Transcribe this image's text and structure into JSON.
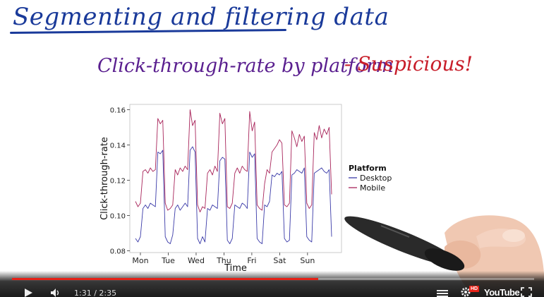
{
  "slide": {
    "title": "Segmenting and filtering data",
    "subtitle": "Click-through-rate by platform",
    "note": "- Suspicious!"
  },
  "player": {
    "time": "1:31 / 2:35",
    "progress": 0.587,
    "logo": "YouTube",
    "hd_badge": "HD",
    "icons": [
      "play-icon",
      "volume-icon",
      "captions-icon",
      "gear-icon",
      "youtube-logo",
      "fullscreen-icon"
    ]
  },
  "colors": {
    "title": "#1a3a9a",
    "subtitle": "#5a1f8f",
    "note": "#c81e2a",
    "desktop": "#3a3aa8",
    "mobile": "#a8245a",
    "progress": "#e62117"
  },
  "chart_data": {
    "type": "line",
    "xlabel": "Time",
    "ylabel": "Click-through-rate",
    "ylim": [
      0.079,
      0.163
    ],
    "yticks": [
      "0.08",
      "0.10",
      "0.12",
      "0.14",
      "0.16"
    ],
    "xticks": [
      "Mon",
      "Tue",
      "Wed",
      "Thu",
      "Fri",
      "Sat",
      "Sun"
    ],
    "legend_title": "Platform",
    "legend_position": "right",
    "grid": false,
    "series": [
      {
        "name": "Desktop",
        "values": [
          0.087,
          0.085,
          0.088,
          0.104,
          0.106,
          0.104,
          0.107,
          0.106,
          0.105,
          0.136,
          0.135,
          0.137,
          0.088,
          0.085,
          0.084,
          0.089,
          0.104,
          0.106,
          0.103,
          0.105,
          0.107,
          0.105,
          0.137,
          0.139,
          0.136,
          0.087,
          0.084,
          0.088,
          0.085,
          0.104,
          0.103,
          0.106,
          0.105,
          0.104,
          0.131,
          0.133,
          0.132,
          0.086,
          0.084,
          0.087,
          0.106,
          0.105,
          0.104,
          0.107,
          0.106,
          0.104,
          0.136,
          0.133,
          0.135,
          0.087,
          0.085,
          0.084,
          0.106,
          0.105,
          0.108,
          0.123,
          0.122,
          0.124,
          0.123,
          0.125,
          0.087,
          0.085,
          0.086,
          0.123,
          0.124,
          0.126,
          0.125,
          0.124,
          0.127,
          0.088,
          0.086,
          0.085,
          0.124,
          0.125,
          0.126,
          0.127,
          0.125,
          0.124,
          0.126,
          0.088
        ]
      },
      {
        "name": "Mobile",
        "values": [
          0.108,
          0.105,
          0.107,
          0.125,
          0.126,
          0.124,
          0.127,
          0.125,
          0.126,
          0.155,
          0.152,
          0.154,
          0.107,
          0.103,
          0.104,
          0.106,
          0.126,
          0.123,
          0.127,
          0.125,
          0.128,
          0.126,
          0.16,
          0.151,
          0.154,
          0.106,
          0.102,
          0.105,
          0.104,
          0.124,
          0.126,
          0.123,
          0.128,
          0.125,
          0.158,
          0.152,
          0.155,
          0.105,
          0.104,
          0.107,
          0.124,
          0.127,
          0.124,
          0.128,
          0.126,
          0.125,
          0.159,
          0.148,
          0.153,
          0.106,
          0.104,
          0.103,
          0.118,
          0.126,
          0.124,
          0.136,
          0.138,
          0.14,
          0.143,
          0.141,
          0.106,
          0.105,
          0.107,
          0.148,
          0.144,
          0.139,
          0.146,
          0.142,
          0.145,
          0.107,
          0.104,
          0.106,
          0.147,
          0.143,
          0.151,
          0.144,
          0.149,
          0.146,
          0.15,
          0.112
        ]
      }
    ]
  }
}
